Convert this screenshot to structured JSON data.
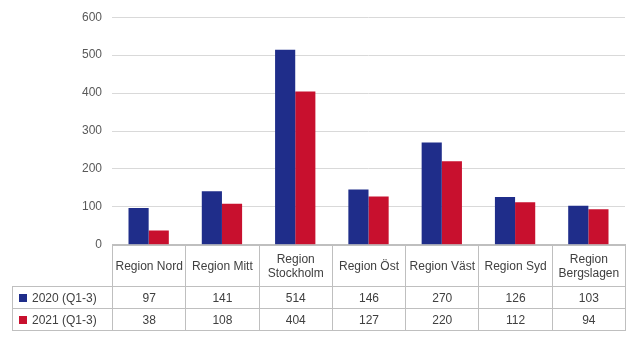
{
  "chart_data": {
    "type": "bar",
    "categories": [
      "Region Nord",
      "Region Mitt",
      "Region Stockholm",
      "Region Öst",
      "Region Väst",
      "Region Syd",
      "Region Bergslagen"
    ],
    "series": [
      {
        "name": "2020 (Q1-3)",
        "color": "#1f2d8a",
        "values": [
          97,
          141,
          514,
          146,
          270,
          126,
          103
        ]
      },
      {
        "name": "2021 (Q1-3)",
        "color": "#c8102e",
        "values": [
          38,
          108,
          404,
          127,
          220,
          112,
          94
        ]
      }
    ],
    "ylim": [
      0,
      600
    ],
    "yticks": [
      0,
      100,
      200,
      300,
      400,
      500,
      600
    ],
    "grid": true
  }
}
